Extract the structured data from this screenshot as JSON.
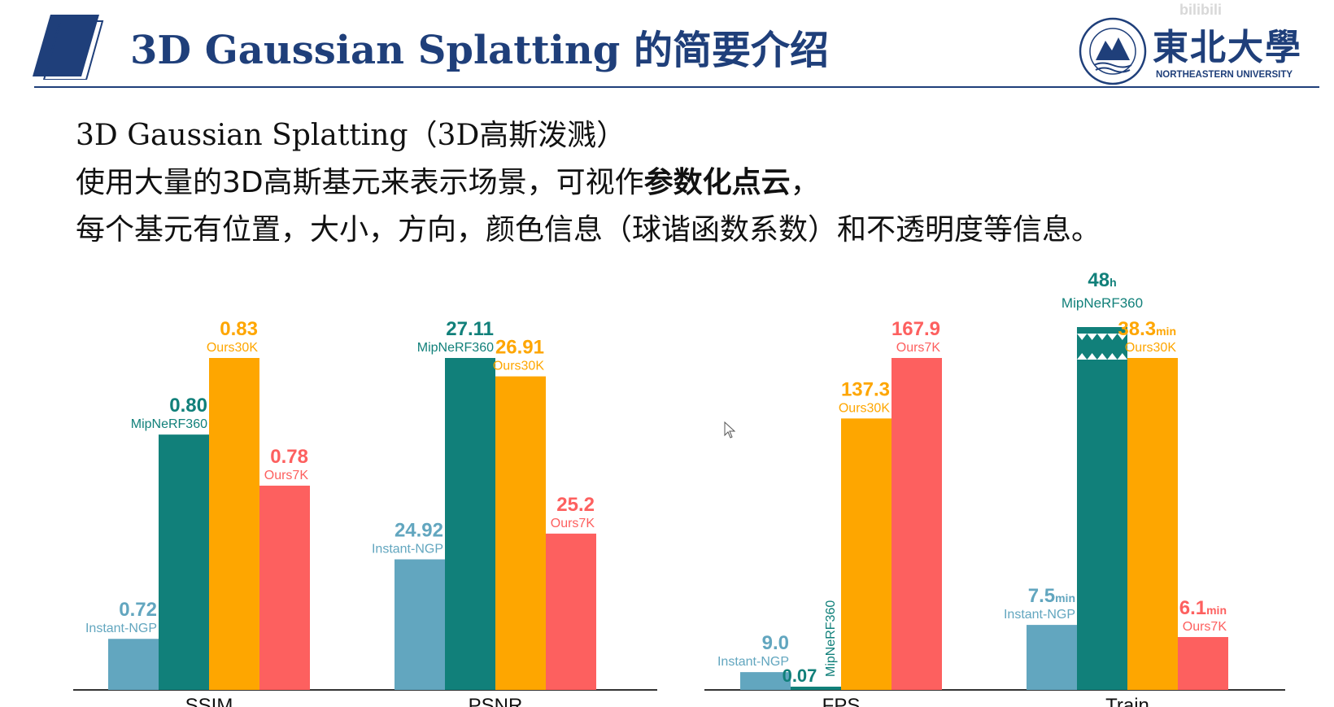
{
  "header": {
    "title": "3D Gaussian Splatting 的简要介绍",
    "university_name_cn": "東北大學",
    "university_name_en": "NORTHEASTERN UNIVERSITY",
    "watermark": "bilibili",
    "colors": {
      "brand": "#1f3f7a"
    }
  },
  "intro": {
    "line1": "3D Gaussian Splatting（3D高斯泼溅）",
    "line2_prefix": "使用大量的3D高斯基元来表示场景，可视作",
    "line2_bold": "参数化点云",
    "line2_suffix": "，",
    "line3": "每个基元有位置，大小，方向，颜色信息（球谐函数系数）和不透明度等信息。"
  },
  "chart_data": [
    {
      "type": "bar",
      "categories": [
        "SSIM",
        "PSNR"
      ],
      "colors": [
        "#62a6bf",
        "#11807a",
        "#fea600",
        "#fd605f"
      ],
      "groups": [
        {
          "category": "SSIM",
          "bars": [
            {
              "label": "Instant-NGP",
              "value": 0.72,
              "value_text": "0.72"
            },
            {
              "label": "MipNeRF360",
              "value": 0.8,
              "value_text": "0.80"
            },
            {
              "label": "Ours30K",
              "value": 0.83,
              "value_text": "0.83"
            },
            {
              "label": "Ours7K",
              "value": 0.78,
              "value_text": "0.78"
            }
          ]
        },
        {
          "category": "PSNR",
          "bars": [
            {
              "label": "Instant-NGP",
              "value": 24.92,
              "value_text": "24.92"
            },
            {
              "label": "MipNeRF360",
              "value": 27.11,
              "value_text": "27.11"
            },
            {
              "label": "Ours30K",
              "value": 26.91,
              "value_text": "26.91"
            },
            {
              "label": "Ours7K",
              "value": 25.2,
              "value_text": "25.2"
            }
          ]
        }
      ]
    },
    {
      "type": "bar",
      "categories": [
        "FPS",
        "Train"
      ],
      "colors": [
        "#62a6bf",
        "#11807a",
        "#fea600",
        "#fd605f"
      ],
      "groups": [
        {
          "category": "FPS",
          "bars": [
            {
              "label": "Instant-NGP",
              "value": 9.0,
              "value_text": "9.0"
            },
            {
              "label": "MipNeRF360",
              "value": 0.07,
              "value_text": "0.07"
            },
            {
              "label": "Ours30K",
              "value": 137.3,
              "value_text": "137.3"
            },
            {
              "label": "Ours7K",
              "value": 167.9,
              "value_text": "167.9"
            }
          ]
        },
        {
          "category": "Train",
          "bars": [
            {
              "label": "Instant-NGP",
              "value": 7.5,
              "value_text": "7.5",
              "unit": "min"
            },
            {
              "label": "MipNeRF360",
              "value": 48,
              "value_text": "48",
              "unit": "h",
              "broken": true
            },
            {
              "label": "Ours30K",
              "value": 38.3,
              "value_text": "38.3",
              "unit": "min"
            },
            {
              "label": "Ours7K",
              "value": 6.1,
              "value_text": "6.1",
              "unit": "min"
            }
          ]
        }
      ]
    }
  ]
}
